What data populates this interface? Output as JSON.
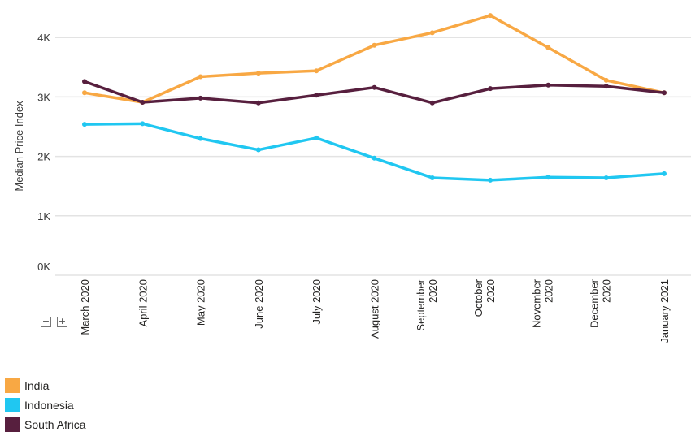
{
  "chart_data": {
    "type": "line",
    "ylabel": "Median Price Index",
    "yticks": [
      "0K",
      "1K",
      "2K",
      "3K",
      "4K"
    ],
    "ylim": [
      0,
      4400
    ],
    "categories": [
      [
        "March 2020"
      ],
      [
        "April 2020"
      ],
      [
        "May 2020"
      ],
      [
        "June 2020"
      ],
      [
        "July 2020"
      ],
      [
        "August 2020"
      ],
      [
        "September",
        "2020"
      ],
      [
        "October",
        "2020"
      ],
      [
        "November",
        "2020"
      ],
      [
        "December",
        "2020"
      ],
      [
        "January 2021"
      ]
    ],
    "series": [
      {
        "name": "India",
        "color": "#F8A844",
        "values": [
          3070,
          2910,
          3340,
          3400,
          3440,
          3870,
          4080,
          4370,
          3830,
          3280,
          3070
        ]
      },
      {
        "name": "Indonesia",
        "color": "#20C7F1",
        "values": [
          2540,
          2550,
          2300,
          2110,
          2310,
          1970,
          1640,
          1600,
          1650,
          1640,
          1710
        ]
      },
      {
        "name": "South Africa",
        "color": "#571F3E",
        "values": [
          3260,
          2910,
          2980,
          2900,
          3030,
          3160,
          2900,
          3140,
          3200,
          3180,
          3070
        ]
      }
    ],
    "grid": true,
    "legend_position": "bottom-left"
  },
  "controls": {
    "collapse_icon": "minus-box-icon",
    "expand_icon": "plus-box-icon"
  }
}
